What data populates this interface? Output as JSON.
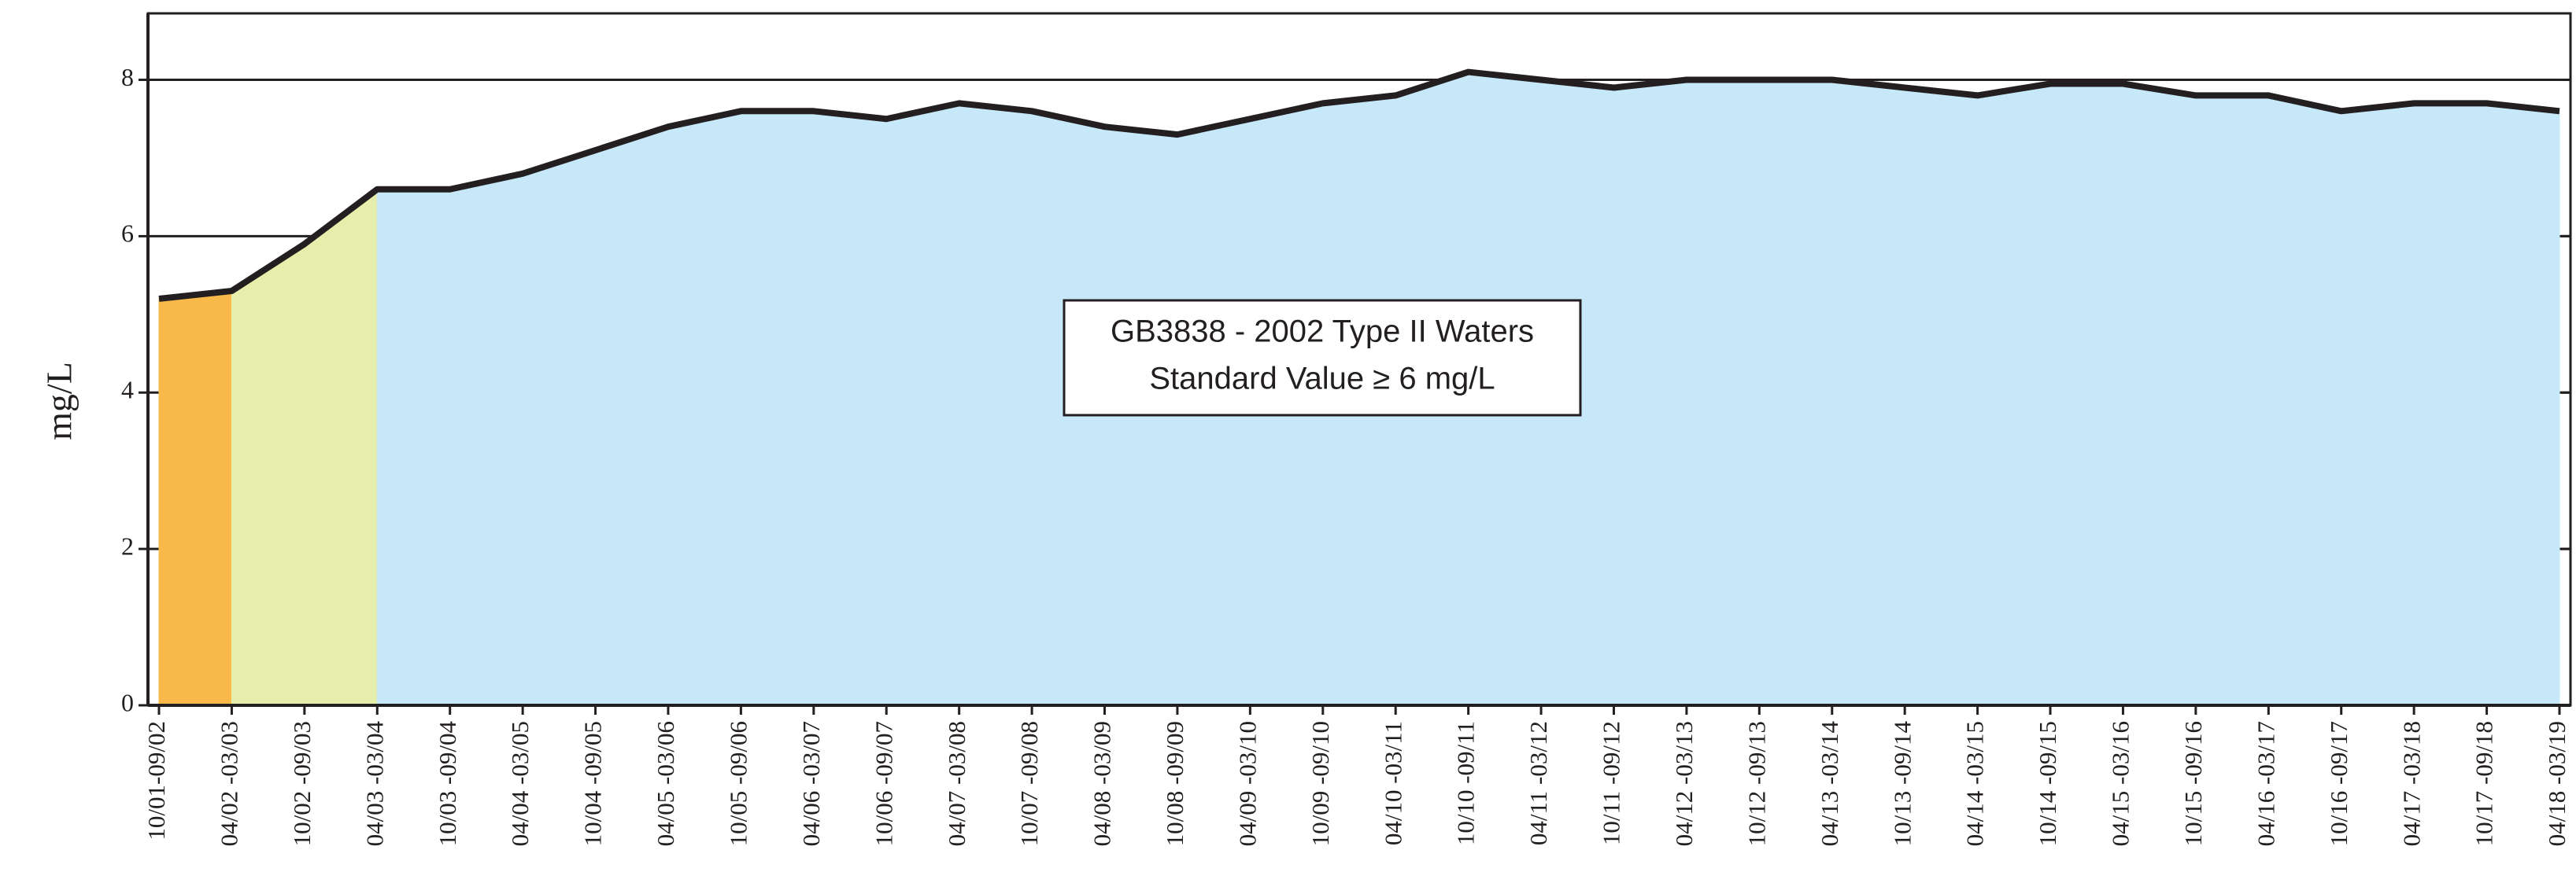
{
  "chart_data": {
    "type": "area",
    "ylabel": "mg/L",
    "annotation": [
      "GB3838 - 2002 Type II Waters",
      "Standard Value ≥ 6 mg/L"
    ],
    "categories": [
      "10/01-09/02",
      "04/02 -03/03",
      "10/02 -09/03",
      "04/03 -03/04",
      "10/03 -09/04",
      "04/04 -03/05",
      "10/04 -09/05",
      "04/05 -03/06",
      "10/05 -09/06",
      "04/06 -03/07",
      "10/06 -09/07",
      "04/07 -03/08",
      "10/07 -09/08",
      "04/08 -03/09",
      "10/08 -09/09",
      "04/09 -03/10",
      "10/09 -09/10",
      "04/10 -03/11",
      "10/10 -09/11",
      "04/11 -03/12",
      "10/11 -09/12",
      "04/12 -03/13",
      "10/12 -09/13",
      "04/13 -03/14",
      "10/13 -09/14",
      "04/14 -03/15",
      "10/14 -09/15",
      "04/15 -03/16",
      "10/15 -09/16",
      "04/16 -03/17",
      "10/16 -09/17",
      "04/17 -03/18",
      "10/17 -09/18",
      "04/18 -03/19"
    ],
    "values": [
      5.2,
      5.3,
      5.9,
      6.6,
      6.6,
      6.8,
      7.1,
      7.4,
      7.6,
      7.6,
      7.5,
      7.7,
      7.6,
      7.4,
      7.3,
      7.5,
      7.7,
      7.8,
      8.1,
      8.0,
      7.9,
      8.0,
      8.0,
      8.0,
      7.9,
      7.8,
      7.95,
      7.95,
      7.8,
      7.8,
      7.6,
      7.7,
      7.7,
      7.6
    ],
    "line_color": "#231f20",
    "area_colors": [
      "#f8b84a",
      "#e6eeab",
      "#e6eeab",
      "#c6e8f9",
      "#c6e8f9",
      "#c6e8f9",
      "#c6e8f9",
      "#c6e8f9",
      "#c6e8f9",
      "#c6e8f9",
      "#c6e8f9",
      "#c6e8f9",
      "#c6e8f9",
      "#c6e8f9",
      "#c6e8f9",
      "#c6e8f9",
      "#c6e8f9",
      "#c6e8f9",
      "#c6e8f9",
      "#c6e8f9",
      "#c6e8f9",
      "#c6e8f9",
      "#c6e8f9",
      "#c6e8f9",
      "#c6e8f9",
      "#c6e8f9",
      "#c6e8f9",
      "#c6e8f9",
      "#c6e8f9",
      "#c6e8f9",
      "#c6e8f9",
      "#c6e8f9",
      "#c6e8f9"
    ],
    "ylim": [
      0,
      8.85
    ],
    "yticks": [
      0,
      2,
      4,
      6,
      8
    ],
    "grid": true
  }
}
